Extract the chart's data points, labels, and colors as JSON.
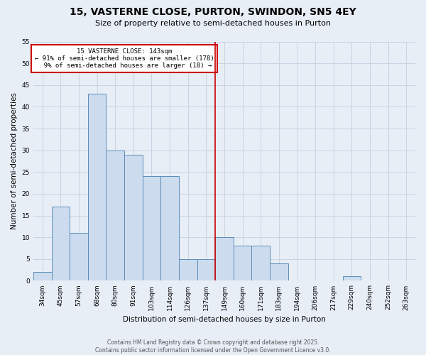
{
  "title": "15, VASTERNE CLOSE, PURTON, SWINDON, SN5 4EY",
  "subtitle": "Size of property relative to semi-detached houses in Purton",
  "xlabel": "Distribution of semi-detached houses by size in Purton",
  "ylabel": "Number of semi-detached properties",
  "categories": [
    "34sqm",
    "45sqm",
    "57sqm",
    "68sqm",
    "80sqm",
    "91sqm",
    "103sqm",
    "114sqm",
    "126sqm",
    "137sqm",
    "149sqm",
    "160sqm",
    "171sqm",
    "183sqm",
    "194sqm",
    "206sqm",
    "217sqm",
    "229sqm",
    "240sqm",
    "252sqm",
    "263sqm"
  ],
  "values": [
    2,
    17,
    11,
    43,
    30,
    29,
    24,
    24,
    5,
    5,
    10,
    8,
    8,
    4,
    0,
    0,
    0,
    1,
    0,
    0,
    0
  ],
  "bar_color": "#ccdcee",
  "bar_edge_color": "#5b8db8",
  "grid_color": "#c8d4e3",
  "background_color": "#e8eef6",
  "marker_line_index": 10,
  "marker_label": "15 VASTERNE CLOSE: 143sqm",
  "pct_smaller": 91,
  "n_smaller": 178,
  "pct_larger": 9,
  "n_larger": 18,
  "annotation_box_color": "#cc0000",
  "footer_line1": "Contains HM Land Registry data © Crown copyright and database right 2025.",
  "footer_line2": "Contains public sector information licensed under the Open Government Licence v3.0.",
  "ylim": [
    0,
    55
  ],
  "yticks": [
    0,
    5,
    10,
    15,
    20,
    25,
    30,
    35,
    40,
    45,
    50,
    55
  ],
  "title_fontsize": 10,
  "subtitle_fontsize": 8,
  "tick_fontsize": 6.5,
  "label_fontsize": 7.5,
  "annot_fontsize": 6.5,
  "footer_fontsize": 5.5
}
